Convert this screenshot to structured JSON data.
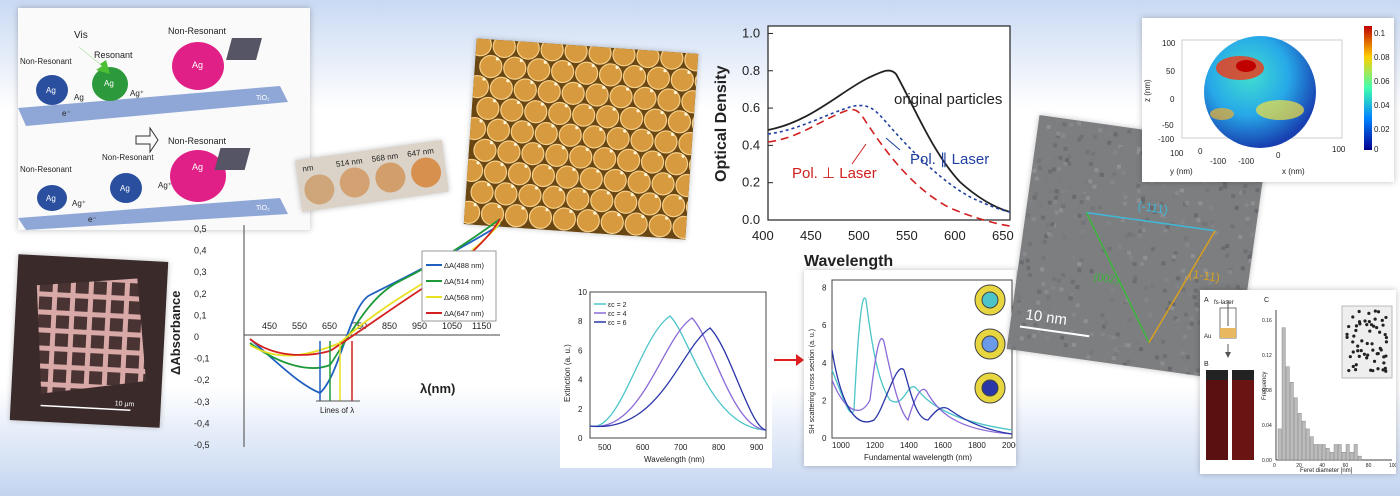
{
  "ag_scheme": {
    "vis": "Vis",
    "resonant": "Resonant",
    "non_resonant_a": "Non-Resonant",
    "non_resonant_b": "Non-Resonant",
    "non_resonant_c": "Non-Resonant",
    "non_resonant_d": "Non-Resonant",
    "non_resonant_e": "Non-Resonant",
    "ag": "Ag",
    "ag_plus": "Ag⁺",
    "tio2": "TiO₂",
    "electron": "e⁻"
  },
  "sample_wells": {
    "labels": [
      "nm",
      "514 nm",
      "568 nm",
      "647 nm"
    ]
  },
  "absorbance_chart": {
    "ylabel": "ΔAbsorbance",
    "xlabel": "λ(nm)",
    "y_ticks": [
      "0,5",
      "0,4",
      "0,3",
      "0,2",
      "0,1",
      "0",
      "-0,1",
      "-0,2",
      "-0,3",
      "-0,4",
      "-0,5"
    ],
    "x_ticks": [
      "450",
      "550",
      "650",
      "750",
      "850",
      "950",
      "1050",
      "1150"
    ],
    "legend": [
      "ΔA(488 nm)",
      "ΔA(514 nm)",
      "ΔA(568 nm)",
      "ΔA(647 nm)"
    ],
    "lines_label": "Lines of λ",
    "colors": [
      "#1f5fbf",
      "#1e9a3a",
      "#e8e020",
      "#d42020"
    ]
  },
  "scale_bar_grid": "10 μm",
  "optical_density": {
    "ylabel": "Optical Density",
    "xlabel": "Wavelength",
    "y_ticks": [
      "0.0",
      "0.2",
      "0.4",
      "0.6",
      "0.8",
      "1.0"
    ],
    "x_ticks": [
      "400",
      "450",
      "500",
      "550",
      "600",
      "650"
    ],
    "label_original": "original particles",
    "label_par": "Pol. ∥ Laser",
    "label_perp": "Pol. ⊥ Laser"
  },
  "extinction": {
    "ylabel": "Extinction (a. u.)",
    "xlabel": "Wavelength (nm)",
    "y_ticks": [
      "0",
      "2",
      "4",
      "6",
      "8",
      "10"
    ],
    "x_ticks": [
      "500",
      "600",
      "700",
      "800",
      "900"
    ],
    "legend": [
      "εc = 2",
      "εc = 4",
      "εc = 6"
    ]
  },
  "sh_scattering": {
    "ylabel": "SH scattering cross section (a. u.)",
    "xlabel": "Fundamental wavelength (nm)",
    "y_ticks": [
      "0",
      "2",
      "4",
      "6",
      "8"
    ],
    "x_ticks": [
      "1000",
      "1200",
      "1400",
      "1600",
      "1800",
      "2000"
    ]
  },
  "tem": {
    "plane_a": "(-111)",
    "plane_b": "(1-11)",
    "plane_c": "(002)",
    "scale": "10 nm"
  },
  "sphere_plot": {
    "z_label": "z (nm)",
    "y_label": "y (nm)",
    "x_label": "x (nm)",
    "z_ticks": [
      "100",
      "50",
      "0",
      "-50",
      "-100"
    ],
    "y_ticks": [
      "100",
      "0",
      "-100"
    ],
    "x_ticks": [
      "-100",
      "0",
      "100"
    ],
    "cbar_ticks": [
      "0.1",
      "0.08",
      "0.06",
      "0.04",
      "0.02",
      "0"
    ]
  },
  "fs_laser": {
    "panel_a": "A",
    "panel_b": "B",
    "panel_c": "C",
    "laser": "fs-laser",
    "au": "Au",
    "ylabel": "Frequency",
    "xlabel": "Feret diameter [nm]",
    "x_ticks": [
      "0",
      "20",
      "40",
      "60",
      "80",
      "100"
    ],
    "y_ticks": [
      "0.16",
      "0.12",
      "0.08",
      "0.04",
      "0.00"
    ]
  }
}
